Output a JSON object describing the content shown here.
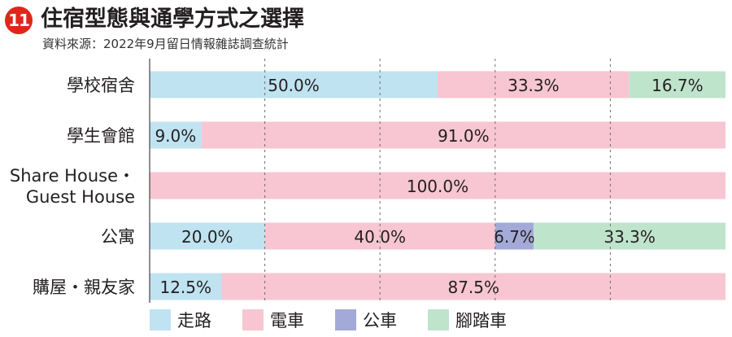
{
  "header": {
    "badge": "11",
    "title": "住宿型態與通學方式之選擇",
    "subtitle": "資料來源：2022年9月留日情報雜誌調查統計"
  },
  "chart_data": {
    "type": "bar",
    "orientation": "horizontal",
    "stacked": true,
    "categories": [
      "學校宿舍",
      "學生會館",
      "Share House・\nGuest House",
      "公寓",
      "購屋・親友家"
    ],
    "series": [
      {
        "name": "走路",
        "color": "#bfe3f1",
        "values": [
          50.0,
          9.0,
          0,
          20.0,
          12.5
        ],
        "labels": [
          "50.0%",
          "9.0%",
          "",
          "20.0%",
          "12.5%"
        ]
      },
      {
        "name": "電車",
        "color": "#f7c6d2",
        "values": [
          33.3,
          91.0,
          100.0,
          40.0,
          87.5
        ],
        "labels": [
          "33.3%",
          "91.0%",
          "100.0%",
          "40.0%",
          "87.5%"
        ]
      },
      {
        "name": "公車",
        "color": "#a3aad8",
        "values": [
          0,
          0,
          0,
          6.7,
          0
        ],
        "labels": [
          "",
          "",
          "",
          "6.7%",
          ""
        ]
      },
      {
        "name": "腳踏車",
        "color": "#bfe4cc",
        "values": [
          16.7,
          0,
          0,
          33.3,
          0
        ],
        "labels": [
          "16.7%",
          "",
          "",
          "33.3%",
          ""
        ]
      }
    ],
    "xlim": [
      0,
      100
    ],
    "gridlines": [
      20,
      40,
      60,
      80
    ],
    "grid": true,
    "legend_position": "bottom"
  }
}
